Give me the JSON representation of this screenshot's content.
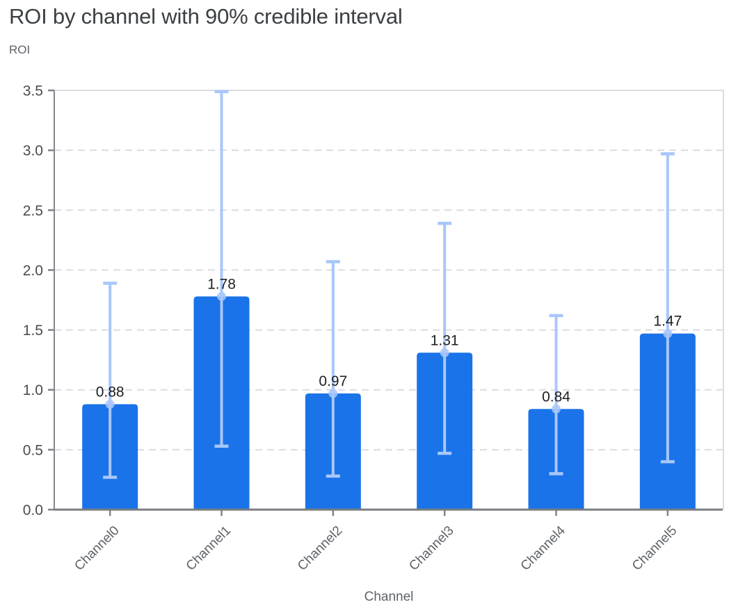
{
  "page": {
    "title": "ROI by channel with 90% credible interval",
    "y_axis_title": "ROI",
    "x_axis_title": "Channel"
  },
  "chart_data": {
    "type": "bar",
    "title": "ROI by channel with 90% credible interval",
    "xlabel": "Channel",
    "ylabel": "ROI",
    "categories": [
      "Channel0",
      "Channel1",
      "Channel2",
      "Channel3",
      "Channel4",
      "Channel5"
    ],
    "values": [
      0.88,
      1.78,
      0.97,
      1.31,
      0.84,
      1.47
    ],
    "data_labels": [
      "0.88",
      "1.78",
      "0.97",
      "1.31",
      "0.84",
      "1.47"
    ],
    "error_bars": {
      "label": "90% credible interval",
      "lower": [
        0.27,
        0.53,
        0.28,
        0.47,
        0.3,
        0.4
      ],
      "upper": [
        1.89,
        3.49,
        2.07,
        2.39,
        1.62,
        2.97
      ]
    },
    "ylim": [
      0,
      3.5
    ],
    "yticks": [
      0.0,
      0.5,
      1.0,
      1.5,
      2.0,
      2.5,
      3.0,
      3.5
    ],
    "ytick_labels": [
      "0.0",
      "0.5",
      "1.0",
      "1.5",
      "2.0",
      "2.5",
      "3.0",
      "3.5"
    ],
    "grid": "horizontal-dashed",
    "legend": "none",
    "colors": {
      "bar": "#1a73e8",
      "error_bar": "#a8c7fa",
      "grid": "#dadce0",
      "axis": "#7f8388",
      "ytick_text": "#494c50",
      "xtick_text": "#5f6368",
      "title_text": "#3c4043",
      "axis_label_text": "#5f6368",
      "value_label_text": "#202124"
    }
  }
}
